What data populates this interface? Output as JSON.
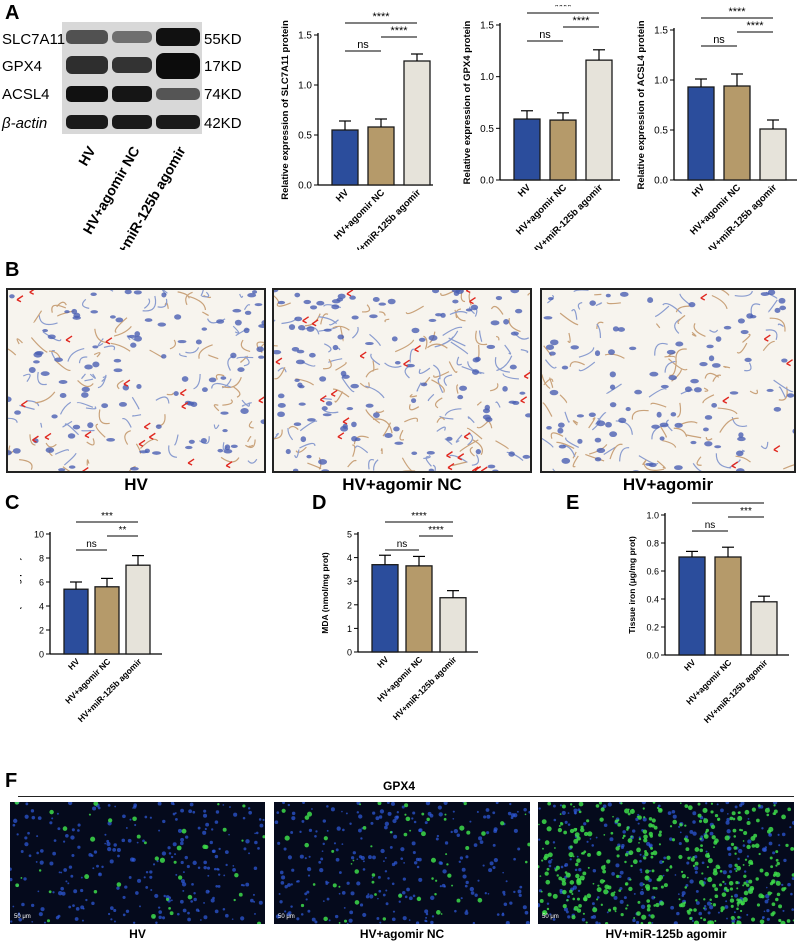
{
  "panel_letters": {
    "a": "A",
    "b": "B",
    "c": "C",
    "d": "D",
    "e": "E",
    "f": "F"
  },
  "western": {
    "proteins": [
      "SLC7A11",
      "GPX4",
      "ACSL4",
      "β-actin"
    ],
    "sizes": [
      "55KD",
      "17KD",
      "74KD",
      "42KD"
    ],
    "lanes": [
      "HV",
      "HV+agomir NC",
      "HV+miR-125b agomir"
    ]
  },
  "colors": {
    "hv": "#2b4d9c",
    "nc": "#b59a6a",
    "agomir": "#e6e3da",
    "bar_edge": "#1a1a1a"
  },
  "chart_data": [
    {
      "id": "slc7a11",
      "type": "bar",
      "ylabel": "Relative expression of SLC7A11 protein",
      "categories": [
        "HV",
        "HV+agomir NC",
        "HV+miR-125b agomir"
      ],
      "values": [
        0.55,
        0.58,
        1.24
      ],
      "errors": [
        0.09,
        0.08,
        0.07
      ],
      "ylim": [
        0,
        1.5
      ],
      "yticks": [
        "0.0",
        "0.5",
        "1.0",
        "1.5"
      ],
      "sig": [
        {
          "label": "****",
          "from": 0,
          "to": 2,
          "level": 0
        },
        {
          "label": "****",
          "from": 1,
          "to": 2,
          "level": 1
        },
        {
          "label": "ns",
          "from": 0,
          "to": 1,
          "level": 2
        }
      ]
    },
    {
      "id": "gpx4",
      "type": "bar",
      "ylabel": "Relative expression of GPX4 protein",
      "categories": [
        "HV",
        "HV+agomir NC",
        "HV+miR-125b agomir"
      ],
      "values": [
        0.59,
        0.58,
        1.16
      ],
      "errors": [
        0.08,
        0.07,
        0.1
      ],
      "ylim": [
        0,
        1.5
      ],
      "yticks": [
        "0.0",
        "0.5",
        "1.0",
        "1.5"
      ],
      "sig": [
        {
          "label": "****",
          "from": 0,
          "to": 2,
          "level": 0
        },
        {
          "label": "****",
          "from": 1,
          "to": 2,
          "level": 1
        },
        {
          "label": "ns",
          "from": 0,
          "to": 1,
          "level": 2
        }
      ]
    },
    {
      "id": "acsl4",
      "type": "bar",
      "ylabel": "Relative expression of ACSL4 protein",
      "categories": [
        "HV",
        "HV+agomir NC",
        "HV+miR-125b agomir"
      ],
      "values": [
        0.93,
        0.94,
        0.51
      ],
      "errors": [
        0.08,
        0.12,
        0.09
      ],
      "ylim": [
        0,
        1.5
      ],
      "yticks": [
        "0.0",
        "0.5",
        "1.0",
        "1.5"
      ],
      "sig": [
        {
          "label": "****",
          "from": 0,
          "to": 2,
          "level": 0
        },
        {
          "label": "****",
          "from": 1,
          "to": 2,
          "level": 1
        },
        {
          "label": "ns",
          "from": 0,
          "to": 1,
          "level": 2
        }
      ]
    },
    {
      "id": "gsh",
      "type": "bar",
      "ylabel": "GSH (umol/g prot)",
      "categories": [
        "HV",
        "HV+agomir NC",
        "HV+miR-125b agomir"
      ],
      "values": [
        5.4,
        5.6,
        7.4
      ],
      "errors": [
        0.6,
        0.7,
        0.8
      ],
      "ylim": [
        0,
        10
      ],
      "yticks": [
        "0",
        "2",
        "4",
        "6",
        "8",
        "10"
      ],
      "sig": [
        {
          "label": "***",
          "from": 0,
          "to": 2,
          "level": 0
        },
        {
          "label": "**",
          "from": 1,
          "to": 2,
          "level": 1
        },
        {
          "label": "ns",
          "from": 0,
          "to": 1,
          "level": 2
        }
      ]
    },
    {
      "id": "mda",
      "type": "bar",
      "ylabel": "MDA (nmol/mg prot)",
      "categories": [
        "HV",
        "HV+agomir NC",
        "HV+miR-125b agomir"
      ],
      "values": [
        3.7,
        3.65,
        2.3
      ],
      "errors": [
        0.4,
        0.4,
        0.3
      ],
      "ylim": [
        0,
        5
      ],
      "yticks": [
        "0",
        "1",
        "2",
        "3",
        "4",
        "5"
      ],
      "sig": [
        {
          "label": "****",
          "from": 0,
          "to": 2,
          "level": 0
        },
        {
          "label": "****",
          "from": 1,
          "to": 2,
          "level": 1
        },
        {
          "label": "ns",
          "from": 0,
          "to": 1,
          "level": 2
        }
      ]
    },
    {
      "id": "iron",
      "type": "bar",
      "ylabel": "Tissue iron (μg/mg prot)",
      "categories": [
        "HV",
        "HV+agomir NC",
        "HV+miR-125b agomir"
      ],
      "values": [
        0.7,
        0.7,
        0.38
      ],
      "errors": [
        0.04,
        0.07,
        0.04
      ],
      "ylim": [
        0,
        1.0
      ],
      "yticks": [
        "0.0",
        "0.2",
        "0.4",
        "0.6",
        "0.8",
        "1.0"
      ],
      "sig": [
        {
          "label": "***",
          "from": 0,
          "to": 2,
          "level": 0
        },
        {
          "label": "***",
          "from": 1,
          "to": 2,
          "level": 1
        },
        {
          "label": "ns",
          "from": 0,
          "to": 1,
          "level": 2
        }
      ]
    }
  ],
  "histology": {
    "captions": [
      "HV",
      "HV+agomir NC",
      "HV+agomir"
    ]
  },
  "fluorescence": {
    "title": "GPX4",
    "captions": [
      "HV",
      "HV+agomir NC",
      "HV+miR-125b agomir"
    ],
    "scale_label": "50 μm"
  }
}
